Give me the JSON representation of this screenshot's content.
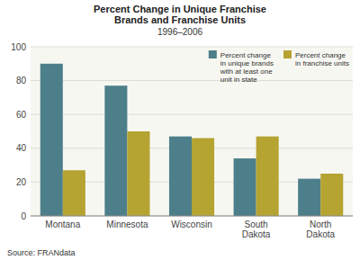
{
  "chart_data": {
    "type": "bar",
    "title": "Percent Change in Unique Franchise\nBrands and Franchise Units",
    "subtitle": "1996–2006",
    "categories": [
      "Montana",
      "Minnesota",
      "Wisconsin",
      "South\nDakota",
      "North\nDakota"
    ],
    "series": [
      {
        "name": "Percent change\nin unique brands\nwith at least one\nunit in state",
        "color": "#4d7f8a",
        "values": [
          90,
          77,
          47,
          34,
          22
        ]
      },
      {
        "name": "Percent change\nin franchise units",
        "color": "#b5a332",
        "values": [
          27,
          50,
          46,
          47,
          25
        ]
      }
    ],
    "ylim": [
      0,
      100
    ],
    "yticks": [
      0,
      20,
      40,
      60,
      80,
      100
    ],
    "grid": true,
    "legend": "upper right",
    "annotations": [
      "Source: FRANdata"
    ]
  }
}
